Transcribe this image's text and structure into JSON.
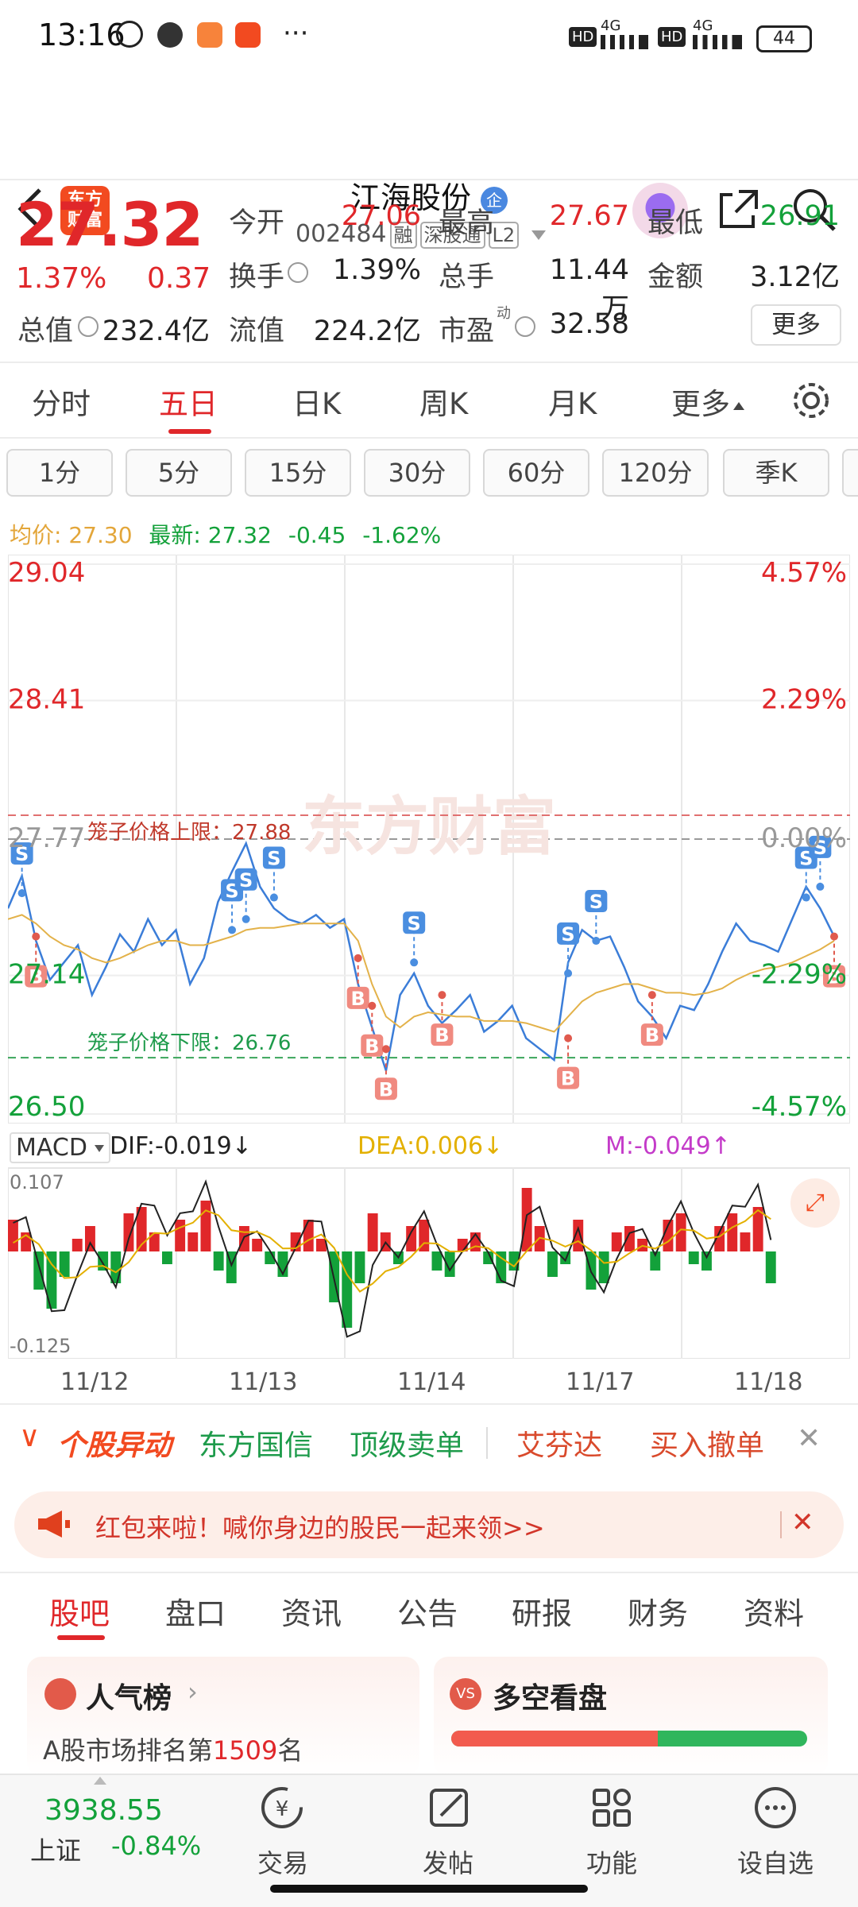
{
  "status_bar": {
    "time": "13:16",
    "signal_label_1": "HD",
    "signal_label_2": "4G",
    "signal_label_3": "HD",
    "signal_label_4": "4G",
    "battery": "44",
    "more": "···"
  },
  "header": {
    "logo_text": "东方财富",
    "stock_name": "江海股份",
    "stock_name_badge": "企",
    "code": "002484",
    "tags": [
      "融",
      "深股通",
      "L2"
    ]
  },
  "quote": {
    "price": "27.32",
    "change_pct": "1.37%",
    "change": "0.37",
    "open_label": "今开",
    "open": "27.06",
    "high_label": "最高",
    "high": "27.67",
    "low_label": "最低",
    "low": "26.91",
    "turnover_label": "换手",
    "turnover": "1.39%",
    "volume_label": "总手",
    "volume": "11.44万",
    "amount_label": "金额",
    "amount": "3.12亿",
    "mktcap_label": "总值",
    "mktcap": "232.4亿",
    "float_label": "流值",
    "float": "224.2亿",
    "pe_label": "市盈",
    "pe_sup": "动",
    "pe": "32.58",
    "more_label": "更多"
  },
  "period_tabs": [
    "分时",
    "五日",
    "日K",
    "周K",
    "月K",
    "更多"
  ],
  "period_active": "五日",
  "minute_buttons": [
    "1分",
    "5分",
    "15分",
    "30分",
    "60分",
    "120分",
    "季K"
  ],
  "avg_line": {
    "avg_label": "均价:",
    "avg_value": "27.30",
    "latest_label": "最新:",
    "latest_value": "27.32",
    "change": "-0.45",
    "change_pct": "-1.62%"
  },
  "colors": {
    "up": "#e0272a",
    "down": "#13a13a",
    "accent": "#f24a20",
    "price_line": "#3b7dd8",
    "avg_line": "#e3b24a"
  },
  "chart_data": {
    "type": "line",
    "y_ticks": [
      "29.04",
      "28.41",
      "27.77",
      "27.14",
      "26.50"
    ],
    "pct_ticks": [
      "4.57%",
      "2.29%",
      "0.00%",
      "-2.29%",
      "-4.57%"
    ],
    "ylim": [
      26.5,
      29.04
    ],
    "cage_upper_label": "笼子价格上限：27.88",
    "cage_upper": 27.88,
    "cage_lower_label": "笼子价格下限：26.76",
    "cage_lower": 26.76,
    "watermark": "东方财富",
    "x_labels": [
      "11/12",
      "11/13",
      "11/14",
      "11/17",
      "11/18"
    ],
    "series": [
      {
        "values": [
          27.45,
          27.6,
          27.3,
          27.12,
          27.2,
          27.28,
          27.05,
          27.18,
          27.33,
          27.25,
          27.4,
          27.28,
          27.35,
          27.1,
          27.22,
          27.48,
          27.62,
          27.75,
          27.55,
          27.45,
          27.4,
          27.38,
          27.42,
          27.36,
          27.4,
          27.1,
          26.9,
          26.7,
          27.05,
          27.15,
          27.0,
          26.92,
          26.98,
          27.05,
          26.88,
          26.93,
          27.0,
          26.85,
          26.8,
          26.75,
          27.2,
          27.35,
          27.3,
          27.32,
          27.18,
          27.02,
          26.95,
          26.85,
          27.0,
          26.98,
          27.1,
          27.25,
          27.38,
          27.3,
          27.28,
          27.25,
          27.4,
          27.55,
          27.45,
          27.32
        ]
      },
      {
        "values": [
          27.4,
          27.42,
          27.38,
          27.32,
          27.28,
          27.26,
          27.22,
          27.2,
          27.22,
          27.25,
          27.28,
          27.3,
          27.3,
          27.28,
          27.28,
          27.3,
          27.32,
          27.35,
          27.36,
          27.36,
          27.37,
          27.38,
          27.38,
          27.38,
          27.38,
          27.3,
          27.1,
          26.95,
          26.9,
          26.95,
          26.97,
          26.96,
          26.95,
          26.95,
          26.93,
          26.93,
          26.93,
          26.92,
          26.9,
          26.88,
          26.95,
          27.02,
          27.06,
          27.08,
          27.1,
          27.1,
          27.08,
          27.06,
          27.06,
          27.05,
          27.06,
          27.08,
          27.12,
          27.15,
          27.17,
          27.18,
          27.2,
          27.23,
          27.26,
          27.3
        ]
      }
    ],
    "markers": [
      {
        "type": "S",
        "x_index": 1,
        "value": 27.52
      },
      {
        "type": "B",
        "x_index": 2,
        "value": 27.32
      },
      {
        "type": "S",
        "x_index": 16,
        "value": 27.35
      },
      {
        "type": "S",
        "x_index": 17,
        "value": 27.4
      },
      {
        "type": "S",
        "x_index": 19,
        "value": 27.5
      },
      {
        "type": "B",
        "x_index": 25,
        "value": 27.22
      },
      {
        "type": "B",
        "x_index": 26,
        "value": 27.0
      },
      {
        "type": "B",
        "x_index": 27,
        "value": 26.8
      },
      {
        "type": "S",
        "x_index": 29,
        "value": 27.2
      },
      {
        "type": "B",
        "x_index": 31,
        "value": 27.05
      },
      {
        "type": "S",
        "x_index": 40,
        "value": 27.15
      },
      {
        "type": "S",
        "x_index": 42,
        "value": 27.3
      },
      {
        "type": "B",
        "x_index": 40,
        "value": 26.85
      },
      {
        "type": "B",
        "x_index": 46,
        "value": 27.05
      },
      {
        "type": "S",
        "x_index": 57,
        "value": 27.5
      },
      {
        "type": "S",
        "x_index": 58,
        "value": 27.55
      },
      {
        "type": "B",
        "x_index": 59,
        "value": 27.32
      }
    ]
  },
  "macd": {
    "label": "MACD",
    "dif": "DIF:-0.019↓",
    "dea": "DEA:0.006↓",
    "m": "M:-0.049↑",
    "top": "0.107",
    "bottom": "-0.125",
    "bars": [
      0.05,
      0.03,
      -0.06,
      -0.09,
      -0.04,
      0.02,
      0.04,
      -0.03,
      -0.05,
      0.06,
      0.07,
      0.03,
      -0.02,
      0.05,
      0.03,
      0.08,
      -0.03,
      -0.05,
      0.04,
      0.02,
      -0.02,
      -0.04,
      0.03,
      0.05,
      0.02,
      -0.08,
      -0.12,
      -0.05,
      0.06,
      0.03,
      -0.02,
      0.04,
      0.05,
      -0.03,
      -0.04,
      0.02,
      0.03,
      -0.02,
      -0.05,
      -0.03,
      0.1,
      0.04,
      -0.04,
      -0.02,
      0.05,
      -0.06,
      -0.05,
      0.03,
      0.04,
      0.02,
      -0.03,
      0.05,
      0.06,
      -0.02,
      -0.03,
      0.04,
      0.06,
      0.03,
      0.07,
      -0.05
    ]
  },
  "news_strip": {
    "title": "个股异动",
    "items": [
      "东方国信",
      "顶级卖单",
      "艾芬达",
      "买入撤单"
    ]
  },
  "banner": {
    "text": "红包来啦！喊你身边的股民一起来领>>"
  },
  "section_tabs": [
    "股吧",
    "盘口",
    "资讯",
    "公告",
    "研报",
    "财务",
    "资料"
  ],
  "section_active": "股吧",
  "cards": {
    "popularity_title": "人气榜",
    "popularity_prefix": "A股市场排名第",
    "popularity_rank": "1509",
    "popularity_suffix": "名",
    "sentiment_title": "多空看盘",
    "sentiment_bull": 0.58
  },
  "bottom_nav": {
    "index_value": "3938.55",
    "index_name": "上证",
    "index_change": "-0.84%",
    "items": [
      "交易",
      "发帖",
      "功能",
      "设自选"
    ]
  }
}
